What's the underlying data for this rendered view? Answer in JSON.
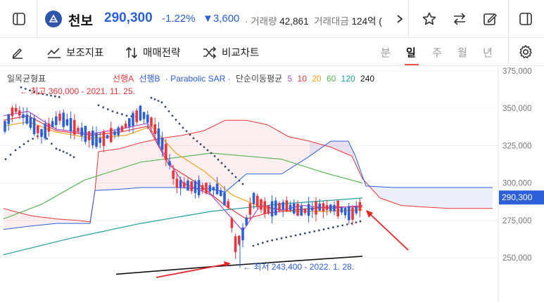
{
  "header": {
    "stock_name": "천보",
    "price": "290,300",
    "change_rate": "-1.22%",
    "change_amount": "▼3,600",
    "volume_label": "· 거래량",
    "volume_value": "42,861",
    "turnover_label": "거래대금",
    "turnover_value": "124억 ("
  },
  "toolbar": {
    "draw_label": "",
    "indicator_label": "보조지표",
    "strategy_label": "매매전략",
    "compare_label": "비교차트",
    "periods": [
      "분",
      "일",
      "주",
      "월",
      "년"
    ],
    "active_period": "일"
  },
  "legend": {
    "ichimoku": "일목균형표",
    "span_a": "선행A",
    "span_b": "선행B",
    "sar": "· Parabolic SAR ·",
    "ma": "단순이동평균",
    "ma_periods": [
      "5",
      "10",
      "20",
      "60",
      "120",
      "240"
    ]
  },
  "annotations": {
    "high": "← 최고 360,000 - 2021. 11. 25.",
    "low": "← 최저 243,400 - 2022. 1. 28."
  },
  "price_tag": "290,300",
  "colors": {
    "up": "#e8363a",
    "down": "#2d5fd8",
    "accent": "#e8554b",
    "ma5": "#b04fd1",
    "ma10": "#e8363a",
    "ma20": "#f0a020",
    "ma60": "#5ab55a",
    "ma120": "#1e9e9e",
    "ma240": "#111111"
  },
  "chart_data": {
    "type": "candlestick",
    "y_axis": {
      "min": 237000,
      "max": 375000,
      "ticks": [
        "375,000",
        "350,000",
        "325,000",
        "300,000",
        "275,000",
        "250,000"
      ],
      "tick_values": [
        375000,
        350000,
        325000,
        300000,
        275000,
        250000
      ]
    },
    "current_price": 290300,
    "high": 360000,
    "low": 243400
  }
}
